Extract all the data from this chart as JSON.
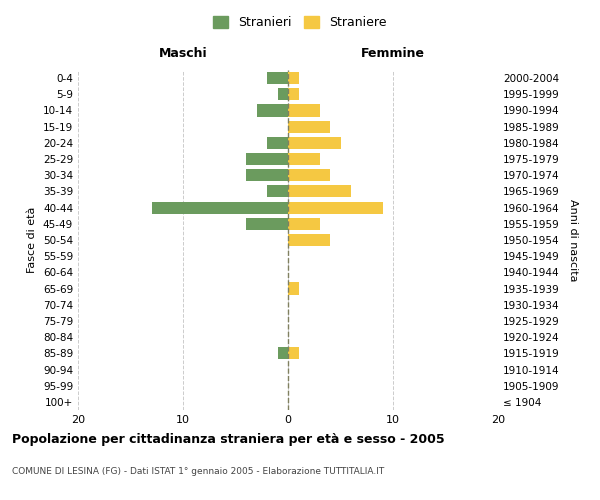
{
  "age_groups": [
    "100+",
    "95-99",
    "90-94",
    "85-89",
    "80-84",
    "75-79",
    "70-74",
    "65-69",
    "60-64",
    "55-59",
    "50-54",
    "45-49",
    "40-44",
    "35-39",
    "30-34",
    "25-29",
    "20-24",
    "15-19",
    "10-14",
    "5-9",
    "0-4"
  ],
  "birth_years": [
    "≤ 1904",
    "1905-1909",
    "1910-1914",
    "1915-1919",
    "1920-1924",
    "1925-1929",
    "1930-1934",
    "1935-1939",
    "1940-1944",
    "1945-1949",
    "1950-1954",
    "1955-1959",
    "1960-1964",
    "1965-1969",
    "1970-1974",
    "1975-1979",
    "1980-1984",
    "1985-1989",
    "1990-1994",
    "1995-1999",
    "2000-2004"
  ],
  "maschi": [
    0,
    0,
    0,
    1,
    0,
    0,
    0,
    0,
    0,
    0,
    0,
    4,
    13,
    2,
    4,
    4,
    2,
    0,
    3,
    1,
    2
  ],
  "femmine": [
    0,
    0,
    0,
    1,
    0,
    0,
    0,
    1,
    0,
    0,
    4,
    3,
    9,
    6,
    4,
    3,
    5,
    4,
    3,
    1,
    1
  ],
  "maschi_color": "#6b9b5e",
  "femmine_color": "#f5c842",
  "background_color": "#ffffff",
  "grid_color": "#cccccc",
  "center_line_color": "#808060",
  "title": "Popolazione per cittadinanza straniera per età e sesso - 2005",
  "subtitle": "COMUNE DI LESINA (FG) - Dati ISTAT 1° gennaio 2005 - Elaborazione TUTTITALIA.IT",
  "xlabel_left": "Maschi",
  "xlabel_right": "Femmine",
  "ylabel_left": "Fasce di età",
  "ylabel_right": "Anni di nascita",
  "legend_stranieri": "Stranieri",
  "legend_straniere": "Straniere",
  "xlim": 20
}
